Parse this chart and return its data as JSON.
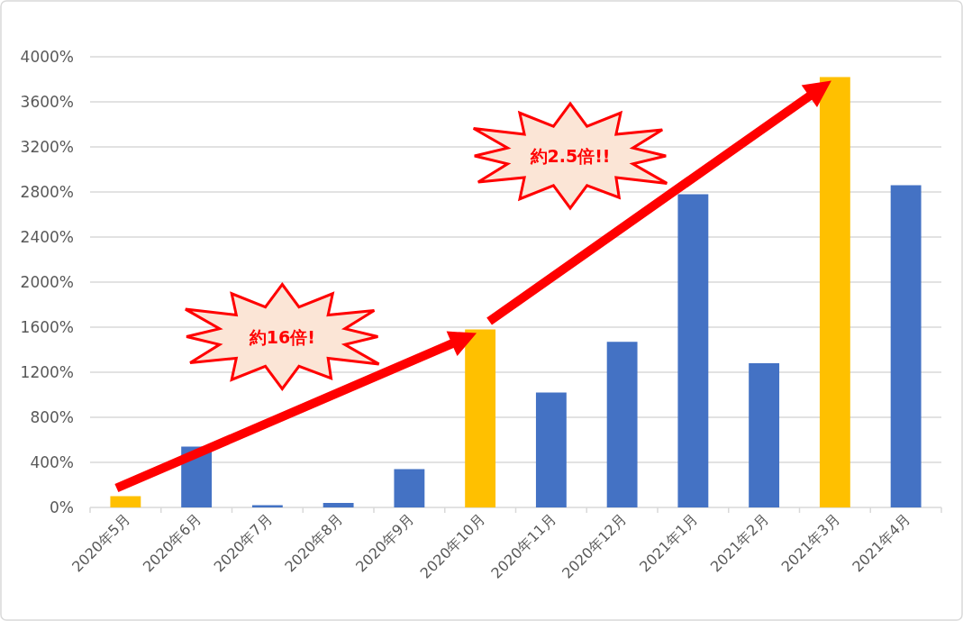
{
  "chart_data": {
    "type": "bar",
    "categories": [
      "2020年5月",
      "2020年6月",
      "2020年7月",
      "2020年8月",
      "2020年9月",
      "2020年10月",
      "2020年11月",
      "2020年12月",
      "2021年1月",
      "2021年2月",
      "2021年3月",
      "2021年4月"
    ],
    "values": [
      100,
      540,
      20,
      40,
      340,
      1580,
      1020,
      1470,
      2780,
      1280,
      3820,
      2860
    ],
    "colors": [
      "#ffc000",
      "#4472c4",
      "#4472c4",
      "#4472c4",
      "#4472c4",
      "#ffc000",
      "#4472c4",
      "#4472c4",
      "#4472c4",
      "#4472c4",
      "#ffc000",
      "#4472c4"
    ],
    "ylim": [
      0,
      4000
    ],
    "yticks": [
      {
        "value": 0,
        "label": "0%"
      },
      {
        "value": 400,
        "label": "400%"
      },
      {
        "value": 800,
        "label": "800%"
      },
      {
        "value": 1200,
        "label": "1200%"
      },
      {
        "value": 1600,
        "label": "1600%"
      },
      {
        "value": 2000,
        "label": "2000%"
      },
      {
        "value": 2400,
        "label": "2400%"
      },
      {
        "value": 2800,
        "label": "2800%"
      },
      {
        "value": 3200,
        "label": "3200%"
      },
      {
        "value": 3600,
        "label": "3600%"
      },
      {
        "value": 4000,
        "label": "4000%"
      }
    ],
    "grid": "y",
    "annotations": [
      "約16倍!",
      "約2.5倍!!"
    ]
  }
}
